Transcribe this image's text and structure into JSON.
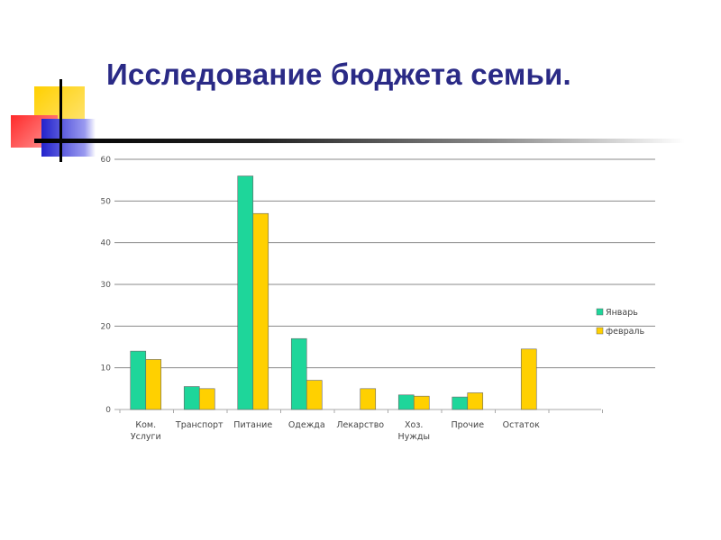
{
  "title": "Исследование бюджета семьи.",
  "colors": {
    "title": "#2a2a86",
    "series_1": "#1ed69a",
    "series_2": "#ffd000",
    "deco_yellow": "#ffd000",
    "deco_red": "#ff3030",
    "deco_blue": "#2a2ad0"
  },
  "chart_data": {
    "type": "bar",
    "categories": [
      [
        "Ком.",
        "Услуги"
      ],
      [
        "Транспорт"
      ],
      [
        "Питание"
      ],
      [
        "Одежда"
      ],
      [
        "Лекарство"
      ],
      [
        "Хоз.",
        "Нужды"
      ],
      [
        "Прочие"
      ],
      [
        "Остаток"
      ]
    ],
    "series": [
      {
        "name": "Январь",
        "values": [
          14,
          5.5,
          56,
          17,
          0,
          3.5,
          3,
          0
        ]
      },
      {
        "name": "февраль",
        "values": [
          12,
          5,
          47,
          7,
          5,
          3.2,
          4,
          14.5
        ]
      }
    ],
    "yticks": [
      0,
      10,
      20,
      30,
      40,
      50,
      60
    ],
    "ylim": [
      0,
      60
    ],
    "grid": true,
    "legend_position": "right"
  }
}
